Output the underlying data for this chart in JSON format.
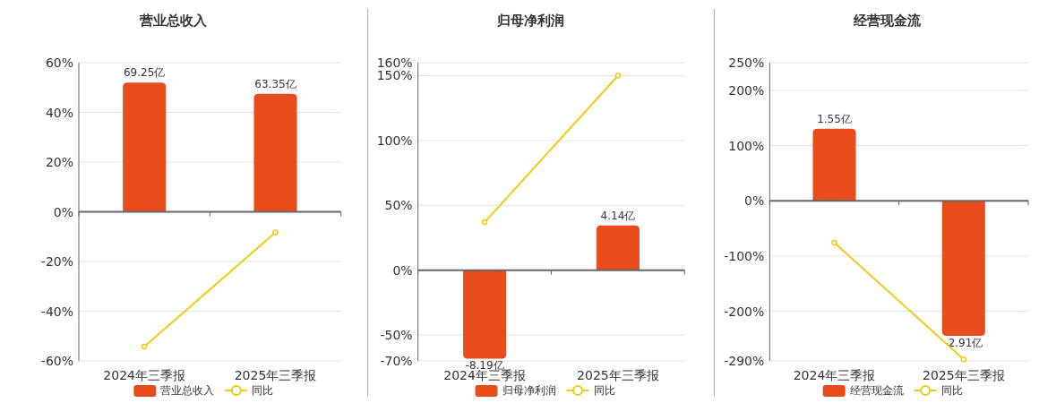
{
  "chart_data": [
    {
      "type": "bar",
      "title": "营业总收入",
      "categories": [
        "2024年三季报",
        "2025年三季报"
      ],
      "series": [
        {
          "name": "营业总收入",
          "color": "#e84c1c",
          "axis": "y2",
          "values": [
            69.25,
            63.35
          ],
          "value_labels": [
            "69.25亿",
            "63.35亿"
          ]
        },
        {
          "name": "同比",
          "type": "line",
          "color": "#f2cb14",
          "marker": "circle",
          "values": [
            -54.2,
            -8.3
          ]
        }
      ],
      "ylim": [
        -60,
        60
      ],
      "yticks": [
        {
          "value": -60,
          "label": "-60%"
        },
        {
          "value": -40,
          "label": "-40%"
        },
        {
          "value": -20,
          "label": "-20%"
        },
        {
          "value": 0,
          "label": "0%"
        },
        {
          "value": 20,
          "label": "20%"
        },
        {
          "value": 40,
          "label": "40%"
        },
        {
          "value": 60,
          "label": "60%"
        }
      ],
      "y2lim": [
        -80,
        80
      ],
      "grid": "y",
      "legend": "bottom"
    },
    {
      "type": "bar",
      "title": "归母净利润",
      "categories": [
        "2024年三季报",
        "2025年三季报"
      ],
      "series": [
        {
          "name": "归母净利润",
          "color": "#e84c1c",
          "axis": "y2",
          "values": [
            -8.19,
            4.14
          ],
          "value_labels": [
            "-8.19亿",
            "4.14亿"
          ]
        },
        {
          "name": "同比",
          "type": "line",
          "color": "#f2cb14",
          "marker": "circle",
          "values": [
            37,
            150
          ]
        }
      ],
      "ylim": [
        -70,
        160
      ],
      "yticks": [
        {
          "value": -70,
          "label": "-70%"
        },
        {
          "value": -50,
          "label": "-50%"
        },
        {
          "value": 0,
          "label": "0%"
        },
        {
          "value": 50,
          "label": "50%"
        },
        {
          "value": 100,
          "label": "100%"
        },
        {
          "value": 150,
          "label": "150%"
        },
        {
          "value": 160,
          "label": "160%"
        }
      ],
      "y2lim": [
        -8.4,
        19.2
      ],
      "grid": "y",
      "legend": "bottom"
    },
    {
      "type": "bar",
      "title": "经营现金流",
      "categories": [
        "2024年三季报",
        "2025年三季报"
      ],
      "series": [
        {
          "name": "经营现金流",
          "color": "#e84c1c",
          "axis": "y2",
          "values": [
            1.55,
            -2.91
          ],
          "value_labels": [
            "1.55亿",
            "-2.91亿"
          ]
        },
        {
          "name": "同比",
          "type": "line",
          "color": "#f2cb14",
          "marker": "circle",
          "values": [
            -76,
            -287
          ]
        }
      ],
      "ylim": [
        -290,
        250
      ],
      "yticks": [
        {
          "value": -290,
          "label": "-290%"
        },
        {
          "value": -200,
          "label": "-200%"
        },
        {
          "value": -100,
          "label": "-100%"
        },
        {
          "value": 0,
          "label": "0%"
        },
        {
          "value": 100,
          "label": "100%"
        },
        {
          "value": 200,
          "label": "200%"
        },
        {
          "value": 250,
          "label": "250%"
        }
      ],
      "y2lim": [
        -3.45,
        2.97
      ],
      "grid": "y",
      "legend": "bottom"
    }
  ]
}
